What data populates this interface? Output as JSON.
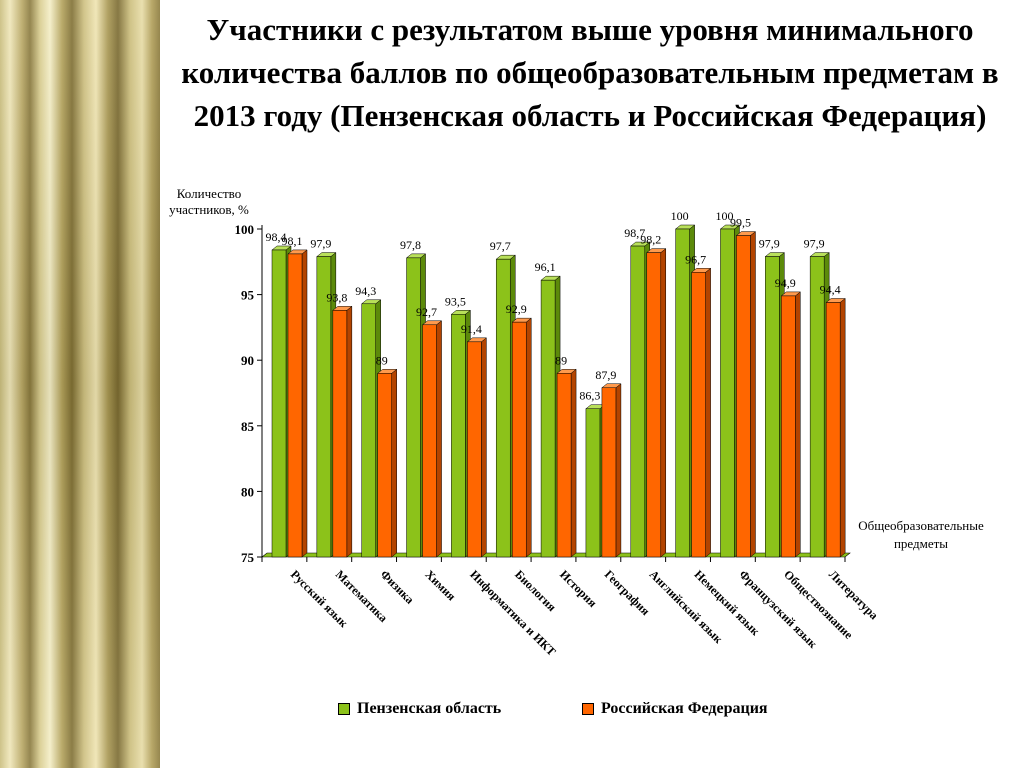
{
  "title": "Участники с результатом выше уровня минимального количества баллов по общеобразовательным предметам в 2013 году (Пензенская область и Российская Федерация)",
  "colors": {
    "series1": "#8cc21a",
    "series2": "#ff6600"
  },
  "chart_data": {
    "type": "bar",
    "title": "Участники с результатом выше уровня минимального количества баллов по общеобразовательным предметам в 2013 году (Пензенская область и Российская Федерация)",
    "ylabel_line1": "Количество",
    "ylabel_line2": "участников, %",
    "xlabel_line1": "Общеобразовательные",
    "xlabel_line2": "предметы",
    "ylim": [
      75,
      100
    ],
    "yticks": [
      "75",
      "80",
      "85",
      "90",
      "95",
      "100"
    ],
    "categories": [
      "Русский язык",
      "Математика",
      "Физика",
      "Химия",
      "Информатика и ИКТ",
      "Биология",
      "История",
      "География",
      "Английский язык",
      "Немецкий язык",
      "Французский язык",
      "Обществознание",
      "Литература"
    ],
    "series": [
      {
        "name": "Пензенская область",
        "values": [
          98.4,
          97.9,
          94.3,
          97.8,
          93.5,
          97.7,
          96.1,
          86.3,
          98.7,
          100,
          100,
          97.9,
          97.9
        ],
        "labels": [
          "98,4",
          "97,9",
          "94,3",
          "97,8",
          "93,5",
          "97,7",
          "96,1",
          "86,3",
          "98,7",
          "100",
          "100",
          "97,9",
          "97,9"
        ]
      },
      {
        "name": "Российская Федерация",
        "values": [
          98.1,
          93.8,
          89,
          92.7,
          91.4,
          92.9,
          89,
          87.9,
          98.2,
          96.7,
          99.5,
          94.9,
          94.4
        ],
        "labels": [
          "98,1",
          "93,8",
          "89",
          "92,7",
          "91,4",
          "92,9",
          "89",
          "87,9",
          "98,2",
          "96,7",
          "99,5",
          "94,9",
          "94,4"
        ]
      }
    ],
    "grid": false,
    "legend_position": "bottom"
  }
}
